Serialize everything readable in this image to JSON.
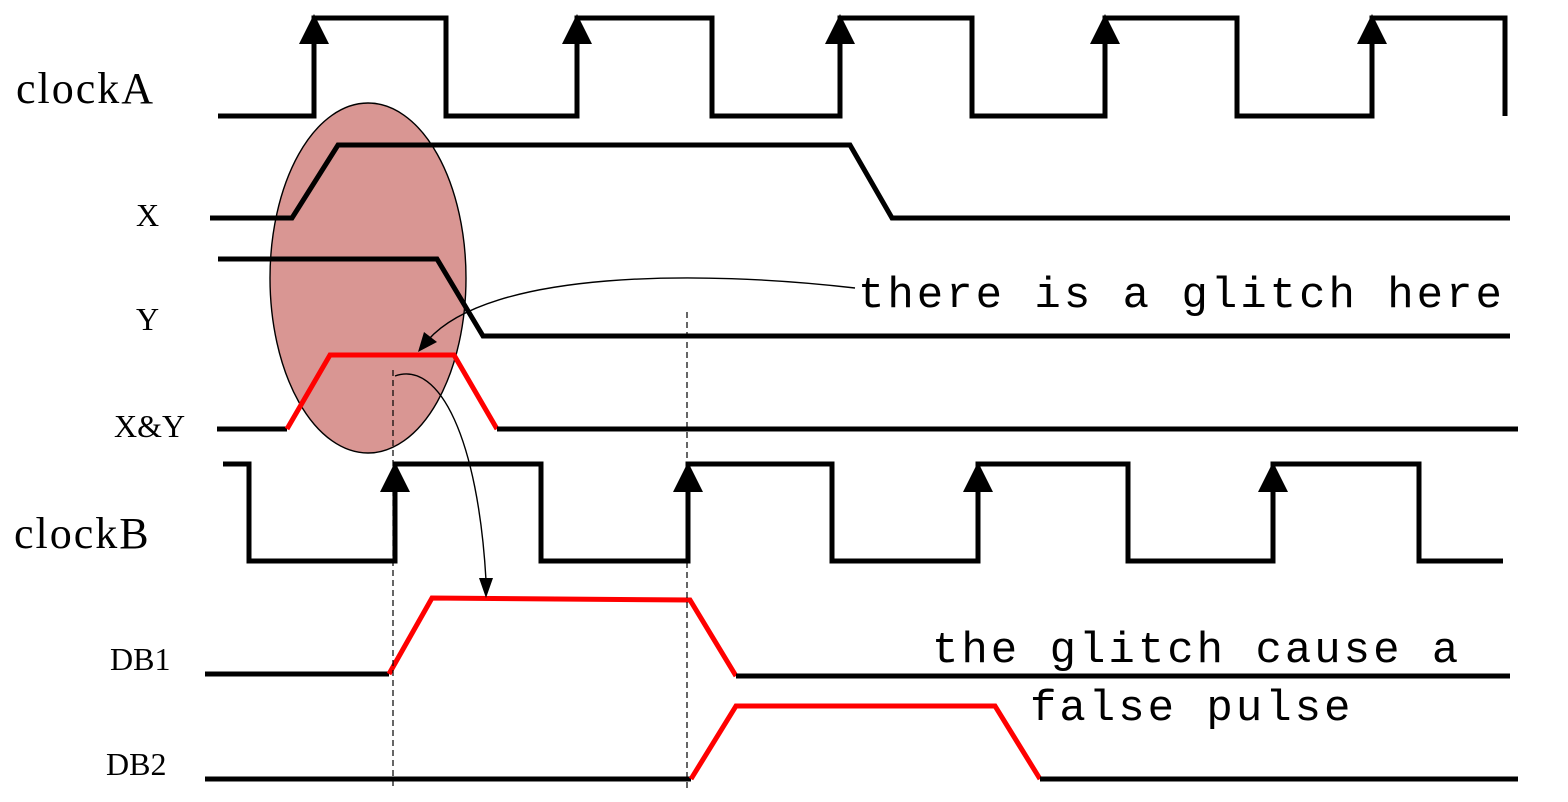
{
  "signals": [
    {
      "id": "clockA",
      "label": "clockA"
    },
    {
      "id": "X",
      "label": "X"
    },
    {
      "id": "Y",
      "label": "Y"
    },
    {
      "id": "XY",
      "label": "X&Y"
    },
    {
      "id": "clockB",
      "label": "clockB"
    },
    {
      "id": "DB1",
      "label": "DB1"
    },
    {
      "id": "DB2",
      "label": "DB2"
    }
  ],
  "annotations": {
    "glitch_here": "there is a glitch here",
    "false_pulse_line1": "the glitch cause a",
    "false_pulse_line2": "false pulse"
  },
  "colors": {
    "wave": "#000000",
    "glitch": "#ff0000",
    "highlight": "#d99693",
    "background": "#ffffff"
  }
}
